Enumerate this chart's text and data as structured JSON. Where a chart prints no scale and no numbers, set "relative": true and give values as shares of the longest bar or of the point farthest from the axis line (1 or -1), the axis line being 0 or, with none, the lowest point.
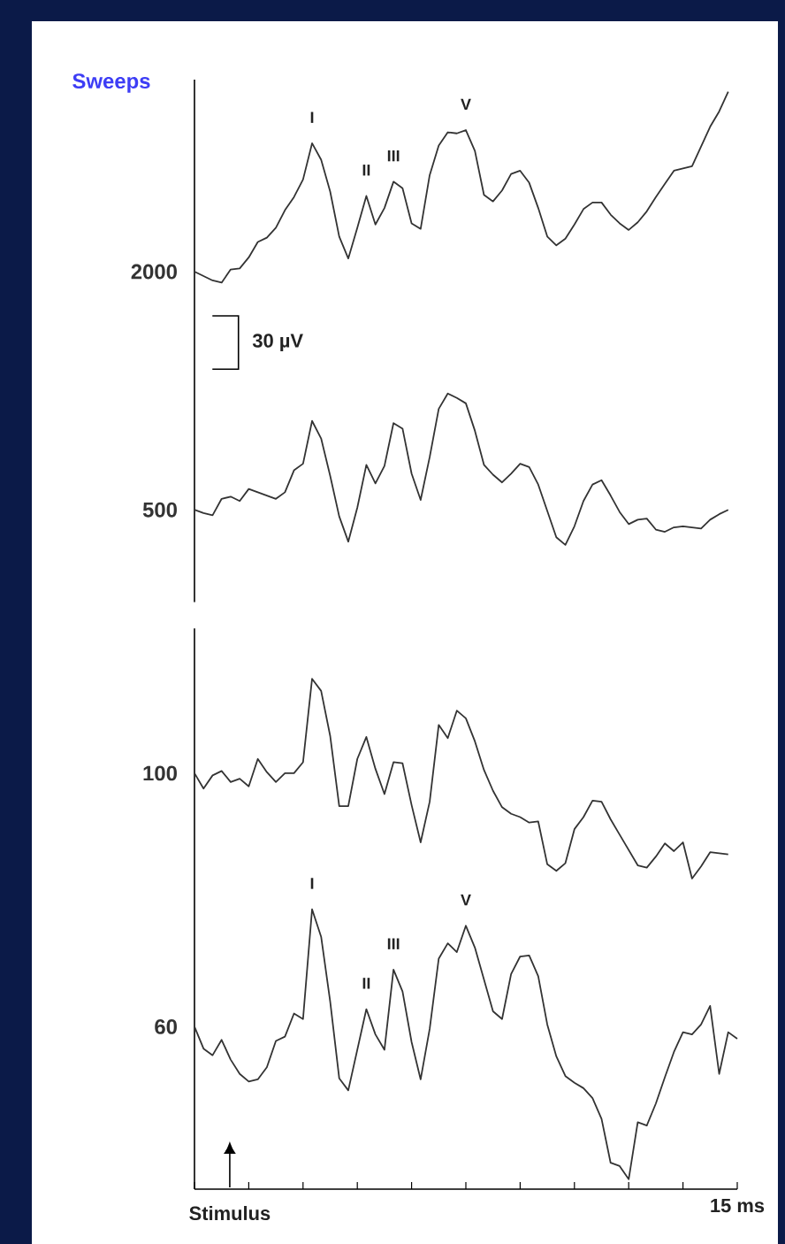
{
  "chart_data": {
    "type": "line",
    "relative": true,
    "legend_title": "Sweeps",
    "legend": false,
    "categories": [
      null,
      null,
      null,
      null,
      null,
      null,
      null,
      null,
      null,
      null,
      null,
      null,
      null,
      null,
      null,
      null,
      null,
      null,
      null,
      null,
      null,
      null,
      null,
      null,
      null,
      null,
      null,
      null,
      null,
      null,
      null,
      null,
      null,
      null,
      null,
      null,
      null,
      null,
      null,
      null,
      null,
      null,
      null,
      null,
      null,
      null,
      null,
      null,
      null,
      null,
      null,
      null,
      null,
      null,
      null,
      null,
      null,
      null,
      null,
      null,
      null
    ],
    "annotations": [
      "30 µV",
      "Stimulus",
      "15 ms",
      {
        "text": "I",
        "y": 0.953
      },
      {
        "text": "II",
        "y": 0.905
      },
      {
        "text": "III",
        "y": 0.918
      },
      {
        "text": "V",
        "y": 0.965
      },
      {
        "text": "I",
        "y": 0.255
      },
      {
        "text": "II",
        "y": 0.164
      },
      {
        "text": "III",
        "y": 0.2
      },
      {
        "text": "V",
        "y": 0.24
      }
    ],
    "series": [
      {
        "name": "2000",
        "color": "#333333",
        "values": [
          0.836,
          0.832,
          0.828,
          0.826,
          0.838,
          0.839,
          0.849,
          0.863,
          0.867,
          0.876,
          0.892,
          0.904,
          0.92,
          0.953,
          0.938,
          0.909,
          0.868,
          0.848,
          0.876,
          0.905,
          0.879,
          0.894,
          0.918,
          0.912,
          0.88,
          0.875,
          0.924,
          0.951,
          0.963,
          0.962,
          0.965,
          0.946,
          0.906,
          0.9,
          0.91,
          0.925,
          0.928,
          0.917,
          0.894,
          0.868,
          0.86,
          0.866,
          0.879,
          0.893,
          0.899,
          0.899,
          0.888,
          0.88,
          0.874,
          0.881,
          0.891,
          0.904,
          0.916,
          0.928,
          0.93,
          0.932,
          0.95,
          0.968,
          0.982,
          1.0,
          null
        ]
      },
      {
        "name": "500",
        "color": "#333333",
        "values": [
          0.619,
          0.616,
          0.614,
          0.629,
          0.631,
          0.627,
          0.638,
          0.635,
          0.632,
          0.629,
          0.635,
          0.655,
          0.661,
          0.7,
          0.684,
          0.65,
          0.613,
          0.59,
          0.621,
          0.66,
          0.643,
          0.659,
          0.698,
          0.693,
          0.652,
          0.628,
          0.667,
          0.711,
          0.725,
          0.721,
          0.716,
          0.691,
          0.66,
          0.651,
          0.644,
          0.652,
          0.661,
          0.658,
          0.642,
          0.618,
          0.594,
          0.587,
          0.604,
          0.627,
          0.642,
          0.646,
          0.632,
          0.617,
          0.606,
          0.61,
          0.611,
          0.601,
          0.599,
          0.603,
          0.604,
          0.603,
          0.602,
          0.61,
          0.615,
          0.619,
          null
        ]
      },
      {
        "name": "100",
        "color": "#333333",
        "values": [
          0.379,
          0.365,
          0.377,
          0.381,
          0.371,
          0.374,
          0.367,
          0.392,
          0.38,
          0.371,
          0.379,
          0.379,
          0.389,
          0.465,
          0.454,
          0.413,
          0.349,
          0.349,
          0.392,
          0.412,
          0.383,
          0.36,
          0.389,
          0.388,
          0.35,
          0.316,
          0.353,
          0.423,
          0.411,
          0.436,
          0.429,
          0.408,
          0.382,
          0.363,
          0.348,
          0.342,
          0.339,
          0.334,
          0.335,
          0.296,
          0.29,
          0.297,
          0.328,
          0.339,
          0.354,
          0.353,
          0.337,
          0.323,
          0.309,
          0.295,
          0.293,
          0.303,
          0.315,
          0.308,
          0.316,
          0.283,
          0.294,
          0.307,
          0.306,
          0.305,
          null
        ]
      },
      {
        "name": "60",
        "color": "#333333",
        "values": [
          0.148,
          0.128,
          0.122,
          0.136,
          0.118,
          0.105,
          0.098,
          0.1,
          0.111,
          0.135,
          0.139,
          0.16,
          0.155,
          0.255,
          0.23,
          0.171,
          0.101,
          0.09,
          0.127,
          0.164,
          0.141,
          0.127,
          0.2,
          0.18,
          0.134,
          0.1,
          0.146,
          0.21,
          0.224,
          0.216,
          0.24,
          0.22,
          0.191,
          0.162,
          0.155,
          0.196,
          0.212,
          0.213,
          0.194,
          0.15,
          0.121,
          0.103,
          0.097,
          0.092,
          0.083,
          0.064,
          0.024,
          0.021,
          0.009,
          0.061,
          0.058,
          0.078,
          0.102,
          0.125,
          0.143,
          0.141,
          0.15,
          0.167,
          0.105,
          0.143,
          0.137
        ]
      }
    ]
  }
}
